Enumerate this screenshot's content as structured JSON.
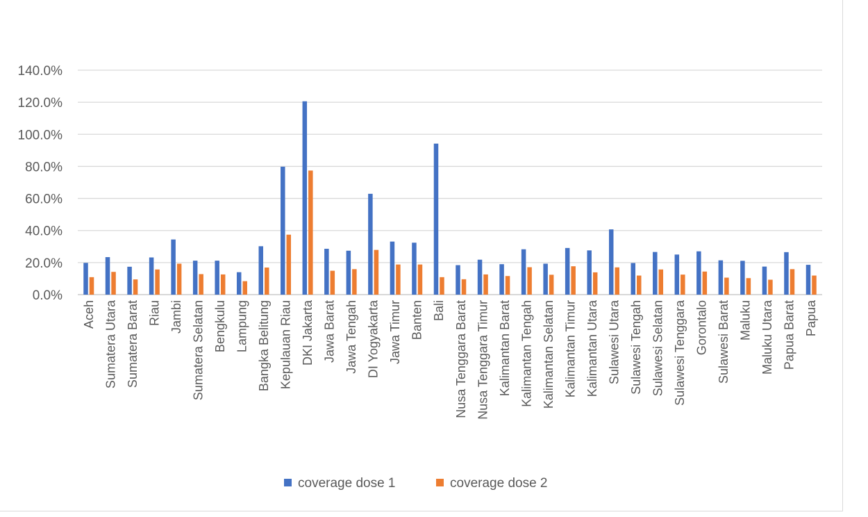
{
  "chart_data": {
    "type": "bar",
    "title": "",
    "xlabel": "",
    "ylabel": "",
    "ylim": [
      0,
      140
    ],
    "yticks": [
      "0.0%",
      "20.0%",
      "40.0%",
      "60.0%",
      "80.0%",
      "100.0%",
      "120.0%",
      "140.0%"
    ],
    "grid": true,
    "legend_position": "bottom",
    "categories": [
      "Aceh",
      "Sumatera Utara",
      "Sumatera Barat",
      "Riau",
      "Jambi",
      "Sumatera Selatan",
      "Bengkulu",
      "Lampung",
      "Bangka Belitung",
      "Kepulauan Riau",
      "DKI Jakarta",
      "Jawa Barat",
      "Jawa Tengah",
      "DI Yogyakarta",
      "Jawa Timur",
      "Banten",
      "Bali",
      "Nusa Tenggara Barat",
      "Nusa Tenggara Timur",
      "Kalimantan Barat",
      "Kalimantan Tengah",
      "Kalimantan Selatan",
      "Kalimantan Timur",
      "Kalimantan Utara",
      "Sulawesi Utara",
      "Sulawesi Tengah",
      "Sulawesi Selatan",
      "Sulawesi Tenggara",
      "Gorontalo",
      "Sulawesi Barat",
      "Maluku",
      "Maluku Utara",
      "Papua Barat",
      "Papua"
    ],
    "series": [
      {
        "name": "coverage dose 1",
        "color": "#4472c4",
        "values": [
          19.8,
          23.4,
          17.4,
          23.2,
          34.4,
          21.2,
          21.2,
          14.0,
          30.2,
          79.8,
          120.6,
          28.6,
          27.4,
          62.9,
          33.1,
          32.4,
          94.2,
          18.4,
          21.8,
          19.0,
          28.3,
          19.3,
          29.1,
          27.6,
          40.7,
          19.7,
          26.6,
          25.0,
          27.0,
          21.4,
          21.1,
          17.5,
          26.5,
          18.6
        ]
      },
      {
        "name": "coverage dose 2",
        "color": "#ed7d31",
        "values": [
          10.9,
          14.2,
          9.5,
          15.7,
          19.3,
          12.8,
          12.6,
          8.4,
          16.9,
          37.4,
          77.4,
          14.9,
          15.9,
          27.9,
          18.8,
          18.8,
          10.9,
          9.6,
          12.6,
          11.6,
          17.1,
          12.4,
          17.7,
          13.9,
          17.0,
          11.9,
          15.7,
          12.5,
          14.4,
          10.6,
          10.3,
          9.3,
          15.9,
          11.9
        ]
      }
    ]
  }
}
